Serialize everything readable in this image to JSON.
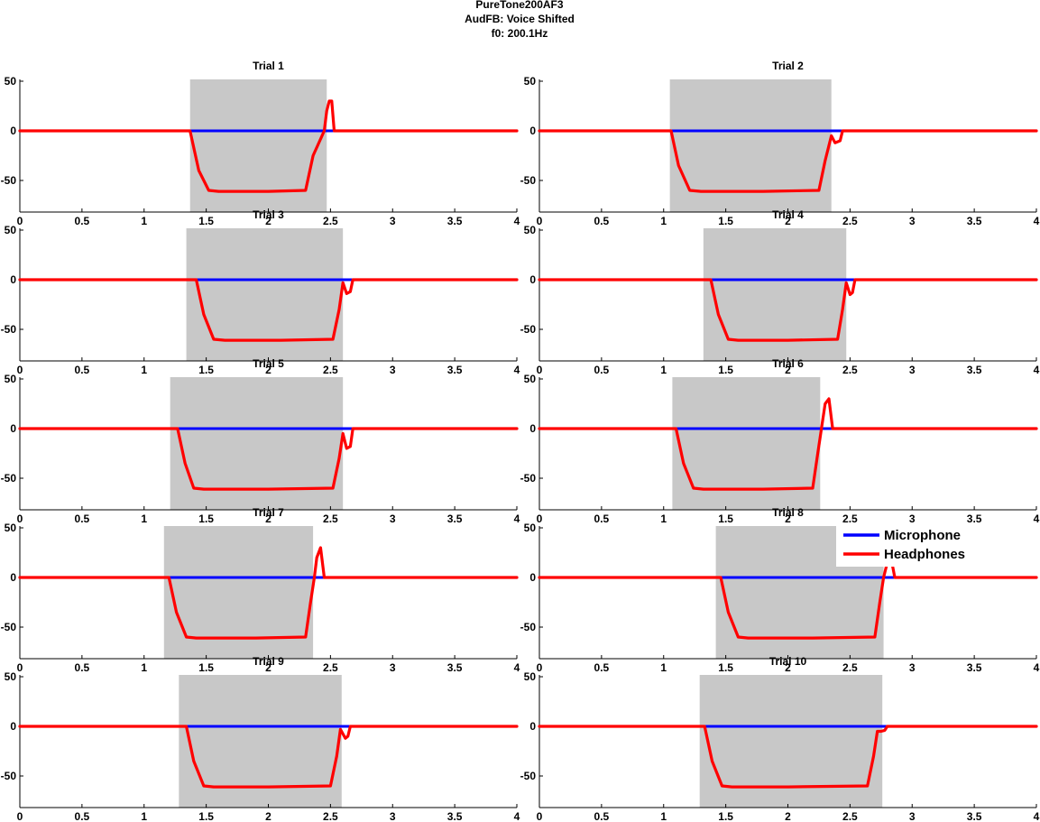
{
  "figure": {
    "title_lines": [
      "PureTone200AF3",
      "AudFB: Voice Shifted",
      "f0: 200.1Hz"
    ]
  },
  "colors": {
    "microphone": "#0000ff",
    "headphones": "#ff0000",
    "shade": "#c8c8c8"
  },
  "legend": {
    "placement": "top-right of Trial 8",
    "items": [
      "Microphone",
      "Headphones"
    ]
  },
  "chart_data": [
    {
      "type": "line",
      "title": "Trial 1",
      "xlim": [
        0,
        4
      ],
      "ylim": [
        -80,
        55
      ],
      "xticks": [
        0,
        0.5,
        1,
        1.5,
        2,
        2.5,
        3,
        3.5,
        4
      ],
      "xtick_labels": [
        "0",
        "0.5",
        "1",
        "1.5",
        "2",
        "2.5",
        "3",
        "3.5",
        "4"
      ],
      "yticks": [
        50,
        0,
        -50
      ],
      "ytick_labels": [
        "50",
        "0",
        "-50"
      ],
      "shade": [
        1.37,
        2.47
      ],
      "series": [
        {
          "name": "Microphone",
          "x": [
            0,
            4
          ],
          "y": [
            0,
            0
          ]
        },
        {
          "name": "Headphones",
          "x": [
            0,
            1.37,
            1.44,
            1.52,
            1.6,
            2.0,
            2.3,
            2.36,
            2.45,
            2.47,
            2.49,
            2.51,
            2.53,
            4
          ],
          "y": [
            0,
            0,
            -40,
            -60,
            -61,
            -61,
            -60,
            -25,
            0,
            20,
            30,
            30,
            0,
            0
          ]
        }
      ]
    },
    {
      "type": "line",
      "title": "Trial 2",
      "xlim": [
        0,
        4
      ],
      "ylim": [
        -80,
        55
      ],
      "xticks": [
        0,
        0.5,
        1,
        1.5,
        2,
        2.5,
        3,
        3.5,
        4
      ],
      "xtick_labels": [
        "0",
        "0.5",
        "1",
        "1.5",
        "2",
        "2.5",
        "3",
        "3.5",
        "4"
      ],
      "yticks": [
        50,
        0,
        -50
      ],
      "ytick_labels": [
        "50",
        "0",
        "-50"
      ],
      "shade": [
        1.05,
        2.35
      ],
      "series": [
        {
          "name": "Microphone",
          "x": [
            0,
            4
          ],
          "y": [
            0,
            0
          ]
        },
        {
          "name": "Headphones",
          "x": [
            0,
            1.06,
            1.12,
            1.21,
            1.3,
            1.8,
            2.25,
            2.3,
            2.35,
            2.38,
            2.42,
            2.44,
            4
          ],
          "y": [
            0,
            0,
            -35,
            -60,
            -61,
            -61,
            -60,
            -30,
            -5,
            -12,
            -10,
            0,
            0
          ]
        }
      ]
    },
    {
      "type": "line",
      "title": "Trial 3",
      "xlim": [
        0,
        4
      ],
      "ylim": [
        -80,
        55
      ],
      "xticks": [
        0,
        0.5,
        1,
        1.5,
        2,
        2.5,
        3,
        3.5,
        4
      ],
      "xtick_labels": [
        "0",
        "0.5",
        "1",
        "1.5",
        "2",
        "2.5",
        "3",
        "3.5",
        "4"
      ],
      "yticks": [
        50,
        0,
        -50
      ],
      "ytick_labels": [
        "50",
        "0",
        "-50"
      ],
      "shade": [
        1.34,
        2.6
      ],
      "series": [
        {
          "name": "Microphone",
          "x": [
            0,
            4
          ],
          "y": [
            0,
            0
          ]
        },
        {
          "name": "Headphones",
          "x": [
            0,
            1.42,
            1.48,
            1.56,
            1.65,
            2.1,
            2.52,
            2.57,
            2.6,
            2.63,
            2.66,
            2.68,
            4
          ],
          "y": [
            0,
            0,
            -35,
            -60,
            -61,
            -61,
            -60,
            -30,
            -3,
            -14,
            -12,
            0,
            0
          ]
        }
      ]
    },
    {
      "type": "line",
      "title": "Trial 4",
      "xlim": [
        0,
        4
      ],
      "ylim": [
        -80,
        55
      ],
      "xticks": [
        0,
        0.5,
        1,
        1.5,
        2,
        2.5,
        3,
        3.5,
        4
      ],
      "xtick_labels": [
        "0",
        "0.5",
        "1",
        "1.5",
        "2",
        "2.5",
        "3",
        "3.5",
        "4"
      ],
      "yticks": [
        50,
        0,
        -50
      ],
      "ytick_labels": [
        "50",
        "0",
        "-50"
      ],
      "shade": [
        1.32,
        2.47
      ],
      "series": [
        {
          "name": "Microphone",
          "x": [
            0,
            4
          ],
          "y": [
            0,
            0
          ]
        },
        {
          "name": "Headphones",
          "x": [
            0,
            1.38,
            1.44,
            1.52,
            1.6,
            2.0,
            2.4,
            2.44,
            2.47,
            2.5,
            2.52,
            2.54,
            4
          ],
          "y": [
            0,
            0,
            -35,
            -60,
            -61,
            -61,
            -60,
            -30,
            -3,
            -15,
            -13,
            0,
            0
          ]
        }
      ]
    },
    {
      "type": "line",
      "title": "Trial 5",
      "xlim": [
        0,
        4
      ],
      "ylim": [
        -80,
        55
      ],
      "xticks": [
        0,
        0.5,
        1,
        1.5,
        2,
        2.5,
        3,
        3.5,
        4
      ],
      "xtick_labels": [
        "0",
        "0.5",
        "1",
        "1.5",
        "2",
        "2.5",
        "3",
        "3.5",
        "4"
      ],
      "yticks": [
        50,
        0,
        -50
      ],
      "ytick_labels": [
        "50",
        "0",
        "-50"
      ],
      "shade": [
        1.21,
        2.6
      ],
      "series": [
        {
          "name": "Microphone",
          "x": [
            0,
            4
          ],
          "y": [
            0,
            0
          ]
        },
        {
          "name": "Headphones",
          "x": [
            0,
            1.27,
            1.33,
            1.4,
            1.48,
            2.0,
            2.52,
            2.57,
            2.6,
            2.63,
            2.66,
            2.68,
            4
          ],
          "y": [
            0,
            0,
            -35,
            -60,
            -61,
            -61,
            -60,
            -30,
            -5,
            -20,
            -18,
            0,
            0
          ]
        }
      ]
    },
    {
      "type": "line",
      "title": "Trial 6",
      "xlim": [
        0,
        4
      ],
      "ylim": [
        -80,
        55
      ],
      "xticks": [
        0,
        0.5,
        1,
        1.5,
        2,
        2.5,
        3,
        3.5,
        4
      ],
      "xtick_labels": [
        "0",
        "0.5",
        "1",
        "1.5",
        "2",
        "2.5",
        "3",
        "3.5",
        "4"
      ],
      "yticks": [
        50,
        0,
        -50
      ],
      "ytick_labels": [
        "50",
        "0",
        "-50"
      ],
      "shade": [
        1.07,
        2.26
      ],
      "series": [
        {
          "name": "Microphone",
          "x": [
            0,
            4
          ],
          "y": [
            0,
            0
          ]
        },
        {
          "name": "Headphones",
          "x": [
            0,
            1.1,
            1.16,
            1.24,
            1.32,
            1.8,
            2.2,
            2.24,
            2.27,
            2.3,
            2.33,
            2.36,
            4
          ],
          "y": [
            0,
            0,
            -35,
            -60,
            -61,
            -61,
            -60,
            -25,
            0,
            25,
            30,
            0,
            0
          ]
        }
      ]
    },
    {
      "type": "line",
      "title": "Trial 7",
      "xlim": [
        0,
        4
      ],
      "ylim": [
        -80,
        55
      ],
      "xticks": [
        0,
        0.5,
        1,
        1.5,
        2,
        2.5,
        3,
        3.5,
        4
      ],
      "xtick_labels": [
        "0",
        "0.5",
        "1",
        "1.5",
        "2",
        "2.5",
        "3",
        "3.5",
        "4"
      ],
      "yticks": [
        50,
        0,
        -50
      ],
      "ytick_labels": [
        "50",
        "0",
        "-50"
      ],
      "shade": [
        1.16,
        2.36
      ],
      "series": [
        {
          "name": "Microphone",
          "x": [
            0,
            4
          ],
          "y": [
            0,
            0
          ]
        },
        {
          "name": "Headphones",
          "x": [
            0,
            1.2,
            1.26,
            1.34,
            1.42,
            1.9,
            2.3,
            2.34,
            2.37,
            2.39,
            2.42,
            2.45,
            4
          ],
          "y": [
            0,
            0,
            -35,
            -60,
            -61,
            -61,
            -60,
            -25,
            0,
            20,
            30,
            0,
            0
          ]
        }
      ]
    },
    {
      "type": "line",
      "title": "Trial 8",
      "xlim": [
        0,
        4
      ],
      "ylim": [
        -80,
        55
      ],
      "xticks": [
        0,
        0.5,
        1,
        1.5,
        2,
        2.5,
        3,
        3.5,
        4
      ],
      "xtick_labels": [
        "0",
        "0.5",
        "1",
        "1.5",
        "2",
        "2.5",
        "3",
        "3.5",
        "4"
      ],
      "yticks": [
        50,
        0,
        -50
      ],
      "ytick_labels": [
        "50",
        "0",
        "-50"
      ],
      "shade": [
        1.42,
        2.77
      ],
      "series": [
        {
          "name": "Microphone",
          "x": [
            0,
            4
          ],
          "y": [
            0,
            0
          ]
        },
        {
          "name": "Headphones",
          "x": [
            0,
            1.46,
            1.52,
            1.6,
            1.68,
            2.2,
            2.7,
            2.74,
            2.77,
            2.8,
            2.83,
            2.86,
            4
          ],
          "y": [
            0,
            0,
            -35,
            -60,
            -61,
            -61,
            -60,
            -25,
            0,
            15,
            20,
            0,
            0
          ]
        }
      ]
    },
    {
      "type": "line",
      "title": "Trial 9",
      "xlim": [
        0,
        4
      ],
      "ylim": [
        -80,
        55
      ],
      "xticks": [
        0,
        0.5,
        1,
        1.5,
        2,
        2.5,
        3,
        3.5,
        4
      ],
      "xtick_labels": [
        "0",
        "0.5",
        "1",
        "1.5",
        "2",
        "2.5",
        "3",
        "3.5",
        "4"
      ],
      "yticks": [
        50,
        0,
        -50
      ],
      "ytick_labels": [
        "50",
        "0",
        "-50"
      ],
      "shade": [
        1.28,
        2.59
      ],
      "series": [
        {
          "name": "Microphone",
          "x": [
            0,
            4
          ],
          "y": [
            0,
            0
          ]
        },
        {
          "name": "Headphones",
          "x": [
            0,
            1.34,
            1.4,
            1.48,
            1.56,
            2.0,
            2.5,
            2.55,
            2.58,
            2.62,
            2.64,
            2.66,
            4
          ],
          "y": [
            0,
            0,
            -35,
            -60,
            -61,
            -61,
            -60,
            -30,
            -3,
            -12,
            -10,
            0,
            0
          ]
        }
      ]
    },
    {
      "type": "line",
      "title": "Trial 10",
      "xlim": [
        0,
        4
      ],
      "ylim": [
        -80,
        55
      ],
      "xticks": [
        0,
        0.5,
        1,
        1.5,
        2,
        2.5,
        3,
        3.5,
        4
      ],
      "xtick_labels": [
        "0",
        "0.5",
        "1",
        "1.5",
        "2",
        "2.5",
        "3",
        "3.5",
        "4"
      ],
      "yticks": [
        50,
        0,
        -50
      ],
      "ytick_labels": [
        "50",
        "0",
        "-50"
      ],
      "shade": [
        1.29,
        2.76
      ],
      "series": [
        {
          "name": "Microphone",
          "x": [
            0,
            4
          ],
          "y": [
            0,
            0
          ]
        },
        {
          "name": "Headphones",
          "x": [
            0,
            1.33,
            1.39,
            1.47,
            1.55,
            2.0,
            2.64,
            2.69,
            2.72,
            2.75,
            2.78,
            2.8,
            4
          ],
          "y": [
            0,
            0,
            -35,
            -60,
            -61,
            -61,
            -60,
            -30,
            -5,
            -5,
            -4,
            0,
            0
          ]
        }
      ]
    }
  ]
}
